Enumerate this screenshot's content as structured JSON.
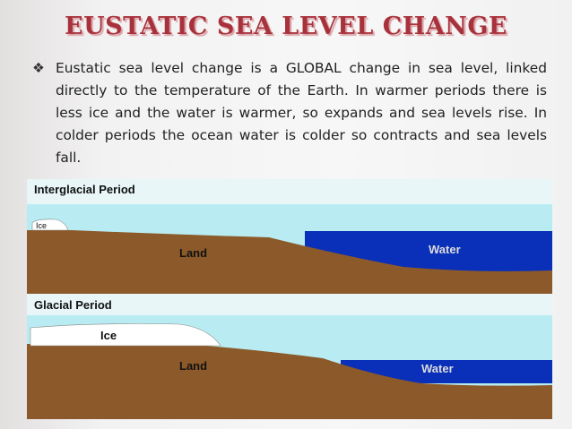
{
  "title": "EUSTATIC SEA LEVEL CHANGE",
  "bullet": "Eustatic sea level change is a GLOBAL change in sea level, linked directly to the temperature of the Earth.  In warmer periods there is less ice and the water is warmer, so expands and sea levels rise.  In colder periods the ocean water is colder so contracts and sea levels fall.",
  "diagram": {
    "interglacial": {
      "title": "Interglacial Period",
      "ice": "Ice",
      "land": "Land",
      "water": "Water"
    },
    "glacial": {
      "title": "Glacial Period",
      "ice": "Ice",
      "land": "Land",
      "water": "Water"
    }
  }
}
